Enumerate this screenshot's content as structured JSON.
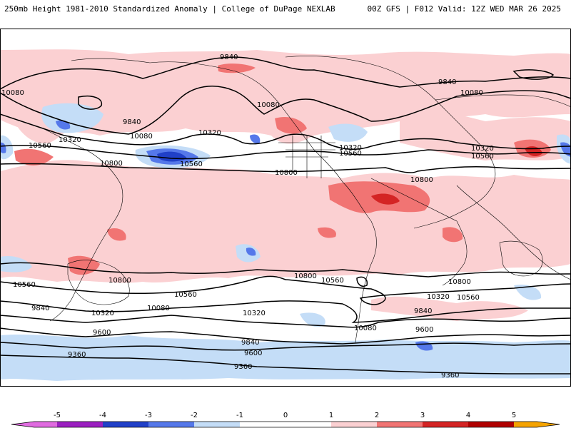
{
  "header": {
    "title_left": "250mb Height 1981-2010 Standardized Anomaly | College of DuPage NEXLAB",
    "title_right": "00Z GFS | F012 Valid: 12Z WED MAR 26 2025"
  },
  "colors": {
    "neg5": "#e06be0",
    "neg4": "#9b1fc0",
    "neg3": "#2040c8",
    "neg2": "#5578ea",
    "neg1": "#c4ddf7",
    "zero": "#ffffff",
    "pos1": "#fbd0d2",
    "pos2": "#f17473",
    "pos3": "#d42424",
    "pos4": "#b00000",
    "pos5": "#f5a300"
  },
  "colorbar": {
    "ticks": [
      "-5",
      "-4",
      "-3",
      "-2",
      "-1",
      "0",
      "1",
      "2",
      "3",
      "4",
      "5"
    ]
  },
  "contour_labels": {
    "c9840_a": "9840",
    "c9840_b": "9840",
    "c9840_c": "9840",
    "c10080_a": "10080",
    "c10080_b": "10080",
    "c10080_c": "10080",
    "c10080_d": "10080",
    "c10320_a": "10320",
    "c10320_b": "10320",
    "c10320_c": "10320",
    "c10320_d": "10320",
    "c10560_a": "10560",
    "c10560_b": "10560",
    "c10560_c": "10560",
    "c10560_d": "10560",
    "c10800_a": "10800",
    "c10800_b": "10800",
    "c10800_c": "10800",
    "s10800_a": "10800",
    "s10800_b": "10800",
    "s10800_c": "10800",
    "s10560_a": "10560",
    "s10560_b": "10560",
    "s10560_c": "10560",
    "s10560_d": "10560",
    "s10320_a": "10320",
    "s10320_b": "10320",
    "s10320_c": "10320",
    "s10080_a": "10080",
    "s10080_b": "10080",
    "s9840_a": "9840",
    "s9840_b": "9840",
    "s9840_c": "9840",
    "s9600_a": "9600",
    "s9600_b": "9600",
    "s9600_c": "9600",
    "s9360_a": "9360",
    "s9360_b": "9360",
    "s9360_c": "9360"
  }
}
